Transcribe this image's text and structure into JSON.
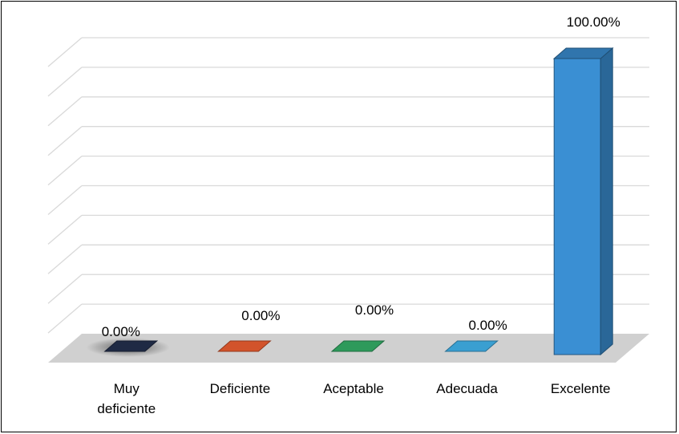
{
  "chart_data": {
    "type": "bar",
    "categories": [
      "Muy deficiente",
      "Deficiente",
      "Aceptable",
      "Adecuada",
      "Excelente"
    ],
    "category_lines": [
      [
        "Muy",
        "deficiente"
      ],
      [
        "Deficiente"
      ],
      [
        "Aceptable"
      ],
      [
        "Adecuada"
      ],
      [
        "Excelente"
      ]
    ],
    "values": [
      0,
      0,
      0,
      0,
      100
    ],
    "data_labels": [
      "0.00%",
      "0.00%",
      "0.00%",
      "0.00%",
      "100.00%"
    ],
    "colors": [
      "#1f2a44",
      "#d2532b",
      "#2e9a5b",
      "#3a9fd1",
      "#3a8fd3"
    ],
    "ylim": [
      0,
      100
    ],
    "grid": true,
    "legend": "none",
    "title": "",
    "xlabel": "",
    "ylabel": ""
  }
}
